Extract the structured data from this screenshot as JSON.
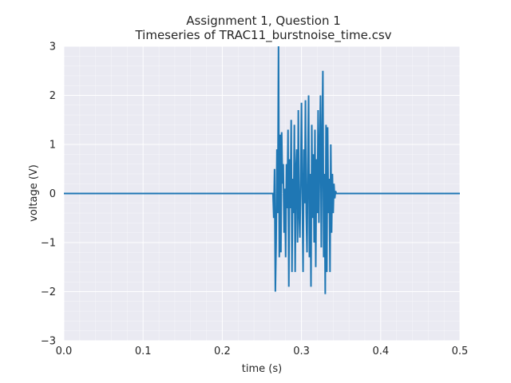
{
  "chart_data": {
    "type": "line",
    "title_line1": "Assignment 1, Question 1",
    "title_line2": "Timeseries of TRAC11_burstnoise_time.csv",
    "xlabel": "time (s)",
    "ylabel": "voltage (V)",
    "xlim": [
      0.0,
      0.5
    ],
    "ylim": [
      -3,
      3
    ],
    "xticks": [
      0.0,
      0.1,
      0.2,
      0.3,
      0.4,
      0.5
    ],
    "xtick_labels": [
      "0.0",
      "0.1",
      "0.2",
      "0.3",
      "0.4",
      "0.5"
    ],
    "yticks": [
      -3,
      -2,
      -1,
      0,
      1,
      2,
      3
    ],
    "ytick_labels": [
      "−3",
      "−2",
      "−1",
      "0",
      "1",
      "2",
      "3"
    ],
    "grid": true,
    "minor_grid": true,
    "colors": {
      "background": "#eaeaf2",
      "grid": "#ffffff",
      "line": "#1f77b4"
    },
    "series": [
      {
        "x": [
          0.0,
          0.1,
          0.2,
          0.264,
          0.265,
          0.266,
          0.267,
          0.268,
          0.269,
          0.27,
          0.271,
          0.272,
          0.273,
          0.274,
          0.275,
          0.276,
          0.277,
          0.278,
          0.279,
          0.28,
          0.281,
          0.282,
          0.283,
          0.284,
          0.285,
          0.286,
          0.287,
          0.288,
          0.289,
          0.29,
          0.291,
          0.292,
          0.293,
          0.294,
          0.295,
          0.296,
          0.297,
          0.298,
          0.299,
          0.3,
          0.301,
          0.302,
          0.303,
          0.304,
          0.305,
          0.306,
          0.307,
          0.308,
          0.309,
          0.31,
          0.311,
          0.312,
          0.313,
          0.314,
          0.315,
          0.316,
          0.317,
          0.318,
          0.319,
          0.32,
          0.321,
          0.322,
          0.323,
          0.324,
          0.325,
          0.326,
          0.327,
          0.328,
          0.329,
          0.33,
          0.331,
          0.332,
          0.333,
          0.334,
          0.335,
          0.336,
          0.337,
          0.338,
          0.339,
          0.34,
          0.341,
          0.342,
          0.343,
          0.344,
          0.4,
          0.5
        ],
        "y": [
          0.0,
          0.0,
          0.0,
          0.0,
          -0.5,
          0.5,
          -2.0,
          -1.0,
          0.9,
          -0.4,
          3.0,
          -1.3,
          1.2,
          -1.2,
          1.25,
          0.2,
          0.6,
          -0.8,
          0.1,
          -1.3,
          0.6,
          -0.3,
          1.3,
          -1.9,
          0.7,
          -0.3,
          1.5,
          -1.6,
          0.3,
          -0.4,
          1.4,
          -1.6,
          0.5,
          0.9,
          -1.0,
          1.7,
          -0.4,
          -0.9,
          0.3,
          1.85,
          0.0,
          -1.6,
          0.9,
          -0.2,
          1.9,
          -0.4,
          -1.2,
          0.6,
          2.0,
          -1.3,
          0.4,
          -1.9,
          1.4,
          -0.5,
          0.8,
          -1.0,
          1.3,
          -1.5,
          0.7,
          -0.4,
          1.7,
          -0.6,
          0.9,
          2.0,
          -1.1,
          1.0,
          2.5,
          -1.3,
          0.4,
          -2.05,
          1.4,
          -1.6,
          1.35,
          -0.4,
          0.3,
          -1.6,
          1.0,
          -0.8,
          0.4,
          -0.4,
          0.2,
          -0.1,
          0.05,
          0.0,
          0.0,
          0.0
        ]
      }
    ]
  }
}
